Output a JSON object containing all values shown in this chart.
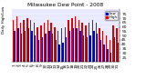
{
  "title": "Milwaukee Dew Point - 2008",
  "subtitle": "Daily High/Low",
  "high_values": [
    68,
    72,
    65,
    68,
    70,
    68,
    65,
    60,
    62,
    65,
    68,
    65,
    60,
    55,
    58,
    60,
    68,
    70,
    72,
    68,
    65,
    62,
    65,
    68,
    65,
    58,
    55,
    50,
    45,
    62,
    58
  ],
  "low_values": [
    55,
    58,
    52,
    55,
    58,
    55,
    50,
    45,
    48,
    52,
    55,
    52,
    45,
    40,
    42,
    48,
    55,
    58,
    58,
    55,
    50,
    48,
    50,
    55,
    52,
    45,
    40,
    35,
    30,
    48,
    42
  ],
  "high_color": "#dd0000",
  "low_color": "#0000cc",
  "ylim": [
    20,
    80
  ],
  "yticks": [
    25,
    30,
    35,
    40,
    45,
    50,
    55,
    60,
    65,
    70,
    75
  ],
  "background_color": "#ffffff",
  "plot_bg_color": "#e8e8ff",
  "legend_high": "High",
  "legend_low": "Low",
  "title_fontsize": 4.2,
  "tick_fontsize": 3.2
}
